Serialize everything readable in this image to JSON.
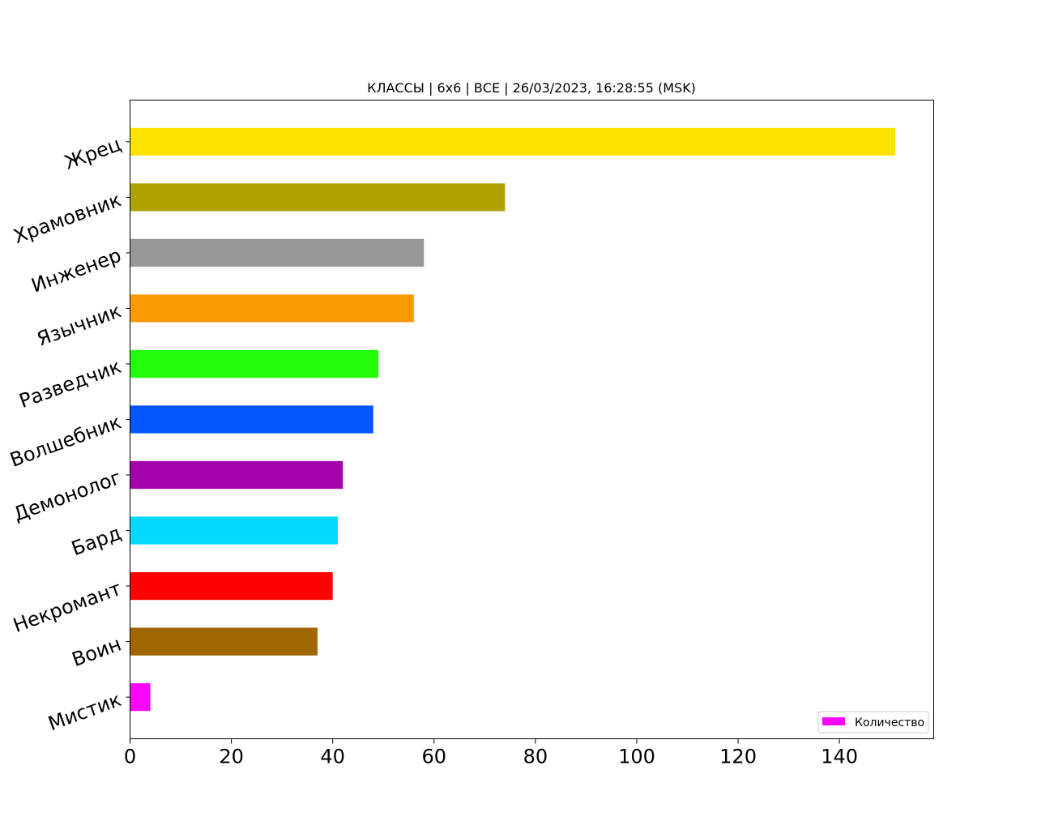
{
  "chart_data": {
    "type": "bar",
    "orientation": "horizontal",
    "title": "КЛАССЫ | 6x6 | ВСЕ | 26/03/2023, 16:28:55 (MSK)",
    "xlabel": "",
    "ylabel": "",
    "categories": [
      "Жрец",
      "Храмовник",
      "Инженер",
      "Язычник",
      "Разведчик",
      "Волшебник",
      "Демонолог",
      "Бард",
      "Некромант",
      "Воин",
      "Мистик"
    ],
    "series": [
      {
        "name": "Количество",
        "values": [
          151,
          74,
          58,
          56,
          49,
          48,
          42,
          41,
          40,
          37,
          4
        ],
        "colors": [
          "#fbe200",
          "#afa100",
          "#979797",
          "#f99a04",
          "#21fc09",
          "#0455fb",
          "#a302af",
          "#05d9fb",
          "#fc0301",
          "#9f6602",
          "#fb05fb"
        ]
      }
    ],
    "xlim": [
      0,
      158.6
    ],
    "xticks": [
      0,
      20,
      40,
      60,
      80,
      100,
      120,
      140
    ],
    "grid": false,
    "legend_position": "bottom-right"
  }
}
